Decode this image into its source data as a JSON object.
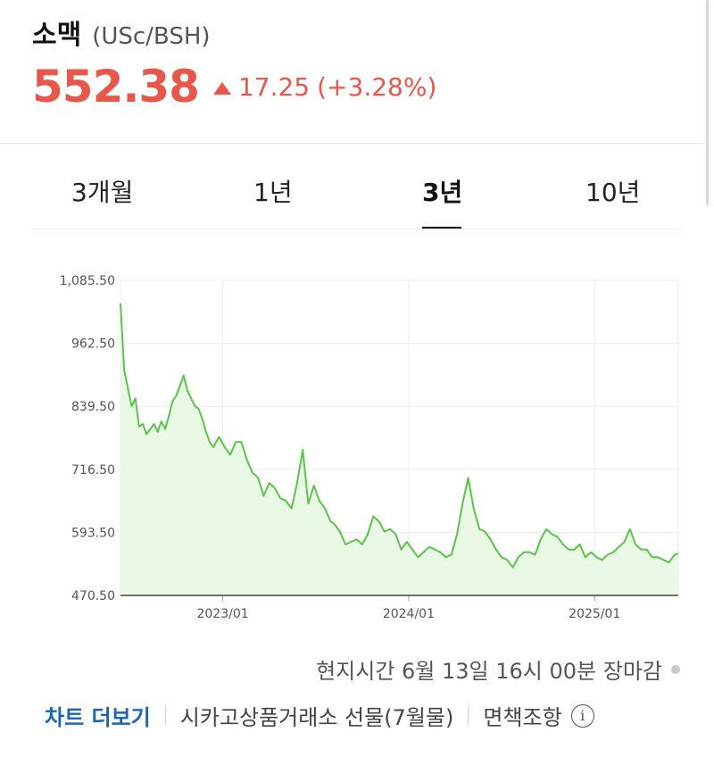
{
  "quote": {
    "name": "소맥",
    "unit": "(USc/BSH)",
    "price": "552.38",
    "change": "17.25",
    "change_pct": "(+3.28%)",
    "direction_icon": "triangle-up-icon",
    "color_up": "#e9564a"
  },
  "tabs": [
    {
      "label": "3개월",
      "active": false
    },
    {
      "label": "1년",
      "active": false
    },
    {
      "label": "3년",
      "active": true
    },
    {
      "label": "10년",
      "active": false
    }
  ],
  "chart_data": {
    "type": "area",
    "y_ticks": [
      "1,085.50",
      "962.50",
      "839.50",
      "716.50",
      "593.50",
      "470.50"
    ],
    "ylim": [
      470.5,
      1085.5
    ],
    "x_ticks": [
      {
        "label": "2023/01",
        "x": 2023.0
      },
      {
        "label": "2024/01",
        "x": 2024.0
      },
      {
        "label": "2025/01",
        "x": 2025.0
      }
    ],
    "xlim": [
      2022.45,
      2025.45
    ],
    "line_color": "#5cc44a",
    "fill_color": "#e9f9e6",
    "grid": true,
    "series": [
      {
        "x": [
          2022.45,
          2022.47,
          2022.49,
          2022.51,
          2022.53,
          2022.55,
          2022.57,
          2022.59,
          2022.61,
          2022.63,
          2022.65,
          2022.67,
          2022.69,
          2022.71,
          2022.73,
          2022.75,
          2022.77,
          2022.79,
          2022.81,
          2022.83,
          2022.85,
          2022.87,
          2022.89,
          2022.91,
          2022.93,
          2022.95,
          2022.98,
          2023.01,
          2023.04,
          2023.07,
          2023.1,
          2023.13,
          2023.16,
          2023.19,
          2023.22,
          2023.25,
          2023.28,
          2023.31,
          2023.34,
          2023.37,
          2023.4,
          2023.43,
          2023.46,
          2023.49,
          2023.52,
          2023.55,
          2023.58,
          2023.6,
          2023.63,
          2023.66,
          2023.69,
          2023.72,
          2023.75,
          2023.78,
          2023.81,
          2023.84,
          2023.87,
          2023.9,
          2023.93,
          2023.96,
          2023.99,
          2024.02,
          2024.05,
          2024.08,
          2024.11,
          2024.14,
          2024.17,
          2024.2,
          2024.23,
          2024.26,
          2024.29,
          2024.32,
          2024.35,
          2024.38,
          2024.41,
          2024.44,
          2024.47,
          2024.5,
          2024.53,
          2024.56,
          2024.59,
          2024.62,
          2024.65,
          2024.68,
          2024.71,
          2024.74,
          2024.77,
          2024.8,
          2024.83,
          2024.86,
          2024.89,
          2024.92,
          2024.95,
          2024.98,
          2025.01,
          2025.04,
          2025.07,
          2025.1,
          2025.13,
          2025.16,
          2025.19,
          2025.22,
          2025.25,
          2025.28,
          2025.31,
          2025.34,
          2025.37,
          2025.4,
          2025.43,
          2025.45
        ],
        "y": [
          1040,
          910,
          875,
          840,
          855,
          800,
          805,
          785,
          795,
          805,
          790,
          810,
          795,
          820,
          850,
          860,
          880,
          900,
          870,
          855,
          840,
          835,
          815,
          790,
          770,
          760,
          780,
          760,
          745,
          770,
          770,
          735,
          710,
          700,
          665,
          690,
          680,
          660,
          655,
          640,
          690,
          755,
          650,
          685,
          655,
          640,
          615,
          610,
          595,
          570,
          575,
          580,
          570,
          590,
          625,
          615,
          595,
          600,
          590,
          560,
          575,
          560,
          545,
          555,
          565,
          560,
          555,
          545,
          550,
          590,
          650,
          700,
          640,
          600,
          595,
          580,
          560,
          545,
          540,
          525,
          545,
          555,
          555,
          550,
          580,
          600,
          590,
          585,
          570,
          560,
          560,
          570,
          545,
          555,
          545,
          540,
          550,
          555,
          565,
          575,
          600,
          570,
          560,
          560,
          545,
          545,
          540,
          535,
          550,
          552
        ],
        "name": ""
      }
    ]
  },
  "footer": {
    "timestamp": "현지시간 6월 13일 16시 00분 장마감",
    "chart_link": "차트 더보기",
    "exchange": "시카고상품거래소 선물(7월물)",
    "disclaimer": "면책조항",
    "info_icon": "info-icon",
    "link_color": "#1a66b3"
  }
}
